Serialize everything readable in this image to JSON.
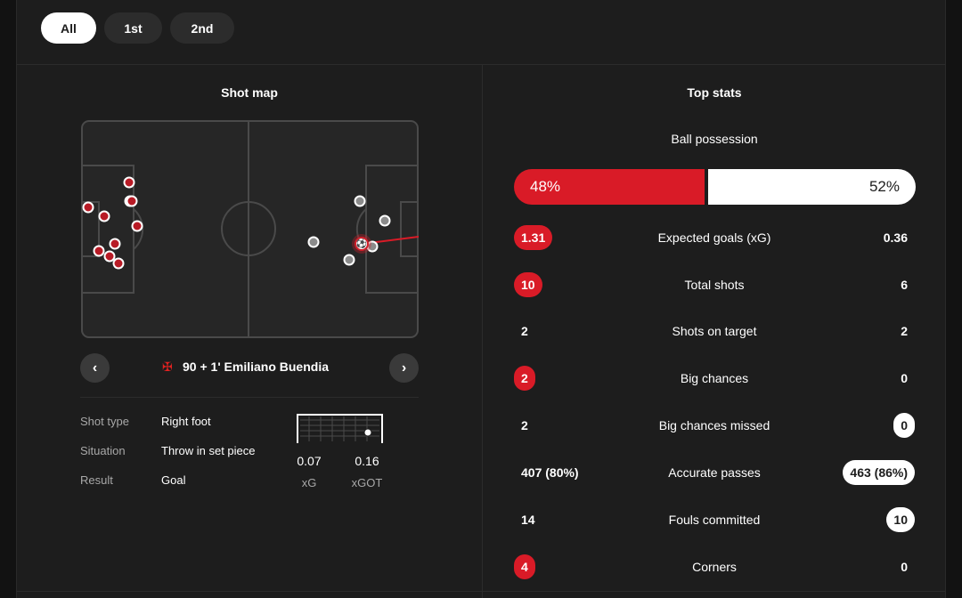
{
  "tabs": [
    {
      "label": "All",
      "active": true
    },
    {
      "label": "1st",
      "active": false
    },
    {
      "label": "2nd",
      "active": false
    }
  ],
  "shot_map": {
    "title": "Shot map",
    "selected_shot": {
      "club_icon": "bayer-leverkusen-crest-icon",
      "label": "90 + 1' Emiliano Buendia"
    },
    "prev_icon": "chevron-left-icon",
    "next_icon": "chevron-right-icon",
    "details": {
      "shot_type_label": "Shot type",
      "shot_type_value": "Right foot",
      "situation_label": "Situation",
      "situation_value": "Throw in set piece",
      "result_label": "Result",
      "result_value": "Goal"
    },
    "xg_value": "0.07",
    "xg_label": "xG",
    "xgot_value": "0.16",
    "xgot_label": "xGOT"
  },
  "top_stats": {
    "title": "Top stats",
    "possession": {
      "label": "Ball possession",
      "home_text": "48%",
      "away_text": "52%",
      "home": 48,
      "away": 52
    },
    "rows": [
      {
        "name": "Expected goals (xG)",
        "home": "1.31",
        "away": "0.36",
        "highlight": "home"
      },
      {
        "name": "Total shots",
        "home": "10",
        "away": "6",
        "highlight": "home"
      },
      {
        "name": "Shots on target",
        "home": "2",
        "away": "2",
        "highlight": "none"
      },
      {
        "name": "Big chances",
        "home": "2",
        "away": "0",
        "highlight": "home"
      },
      {
        "name": "Big chances missed",
        "home": "2",
        "away": "0",
        "highlight": "away"
      },
      {
        "name": "Accurate passes",
        "home": "407 (80%)",
        "away": "463 (86%)",
        "highlight": "away"
      },
      {
        "name": "Fouls committed",
        "home": "14",
        "away": "10",
        "highlight": "away"
      },
      {
        "name": "Corners",
        "home": "4",
        "away": "0",
        "highlight": "home"
      }
    ]
  },
  "colors": {
    "home": "#d91b27",
    "away": "#ffffff",
    "background": "#1d1d1d"
  }
}
